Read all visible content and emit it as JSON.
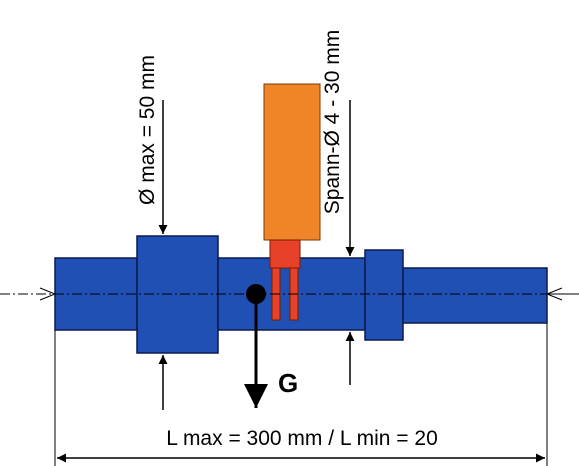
{
  "labels": {
    "diameter_max": "Ø max = 50 mm",
    "clamp_diameter": "Spann-Ø  4 - 30 mm",
    "weight": "G",
    "length": "L max = 300 mm / L min = 20"
  }
}
